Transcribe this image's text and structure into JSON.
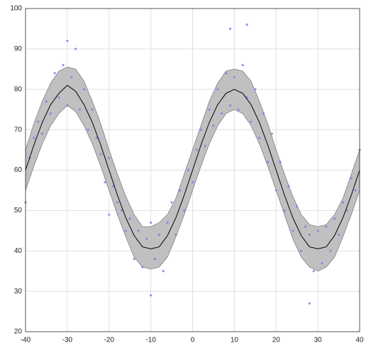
{
  "chart_data": {
    "type": "line",
    "x": [
      -40,
      -38,
      -36,
      -34,
      -32,
      -30,
      -28,
      -26,
      -24,
      -22,
      -20,
      -18,
      -16,
      -14,
      -12,
      -10,
      -8,
      -6,
      -4,
      -2,
      0,
      2,
      4,
      6,
      8,
      10,
      12,
      14,
      16,
      18,
      20,
      22,
      24,
      26,
      28,
      30,
      32,
      34,
      36,
      38,
      40
    ],
    "line": {
      "color": "#000000",
      "values": [
        60,
        66.2,
        71.8,
        76.2,
        79,
        81,
        79.5,
        76.2,
        71.8,
        66.2,
        60,
        53.8,
        48.2,
        43.8,
        41,
        40.5,
        41,
        43.8,
        48.2,
        53.8,
        60,
        66.2,
        71.8,
        76.2,
        79,
        80,
        79,
        76.2,
        71.8,
        66.2,
        60,
        53.8,
        48.2,
        43.8,
        41,
        40.5,
        41,
        43.8,
        48.2,
        53.8,
        60
      ]
    },
    "band": {
      "color": "#c0c0c0",
      "edge": "#808080",
      "upper": [
        65,
        71.5,
        77,
        81.5,
        84.5,
        85.5,
        85,
        82,
        77,
        71.5,
        65,
        59,
        53.5,
        49,
        46,
        46,
        47,
        49,
        53,
        59,
        65,
        71,
        77,
        81.5,
        84.5,
        85,
        84.5,
        82,
        77,
        71.5,
        65,
        59,
        53.5,
        49,
        46.5,
        46,
        46.5,
        49,
        53,
        59,
        65
      ],
      "lower": [
        55,
        61,
        66.5,
        71,
        74,
        76,
        74.5,
        71,
        66.5,
        61,
        55,
        49,
        43.5,
        38.5,
        36,
        35.5,
        36,
        38.5,
        43.5,
        49,
        55,
        61,
        66.5,
        71,
        74,
        75,
        74,
        71,
        66.5,
        61,
        55,
        49,
        43,
        38.5,
        36,
        35,
        36,
        38.5,
        43.5,
        49,
        55
      ]
    },
    "scatter": {
      "color": "#7b7bea",
      "x": [
        -40,
        -39,
        -38,
        -37,
        -36,
        -35,
        -34,
        -33,
        -32,
        -31,
        -30,
        -30,
        -29,
        -28,
        -27,
        -26,
        -25,
        -24,
        -23,
        -22,
        -21,
        -20,
        -20,
        -19,
        -18,
        -17,
        -16,
        -15,
        -14,
        -13,
        -12,
        -11,
        -10,
        -10,
        -9,
        -8,
        -7,
        -6,
        -5,
        -4,
        -3,
        -2,
        -1,
        0,
        1,
        2,
        3,
        4,
        5,
        6,
        7,
        8,
        9,
        9,
        10,
        11,
        12,
        13,
        13,
        14,
        15,
        16,
        17,
        18,
        19,
        20,
        21,
        22,
        23,
        24,
        25,
        26,
        27,
        28,
        28,
        29,
        30,
        31,
        32,
        33,
        34,
        35,
        36,
        37,
        38,
        39,
        40
      ],
      "y": [
        52,
        63,
        68,
        72,
        69,
        77,
        74,
        84,
        78,
        86,
        92,
        76,
        83,
        90,
        75,
        80,
        70,
        75,
        68,
        64,
        57,
        49,
        63,
        56,
        52,
        50,
        45,
        48,
        38,
        45,
        36,
        43,
        29,
        47,
        38,
        44,
        35,
        47,
        52,
        44,
        55,
        50,
        60,
        57,
        65,
        70,
        66,
        75,
        71,
        80,
        74,
        84,
        95,
        76,
        83,
        75,
        86,
        96,
        78,
        72,
        80,
        68,
        74,
        62,
        69,
        55,
        62,
        50,
        56,
        45,
        51,
        40,
        46,
        27,
        44,
        35,
        45,
        37,
        46,
        40,
        48,
        44,
        52,
        50,
        58,
        55,
        65
      ]
    },
    "xlim": [
      -40,
      40
    ],
    "xticks": [
      -40,
      -30,
      -20,
      -10,
      0,
      10,
      20,
      30,
      40
    ],
    "ylim": [
      20,
      100
    ],
    "yticks": [
      20,
      30,
      40,
      50,
      60,
      70,
      80,
      90,
      100
    ],
    "grid": true
  }
}
